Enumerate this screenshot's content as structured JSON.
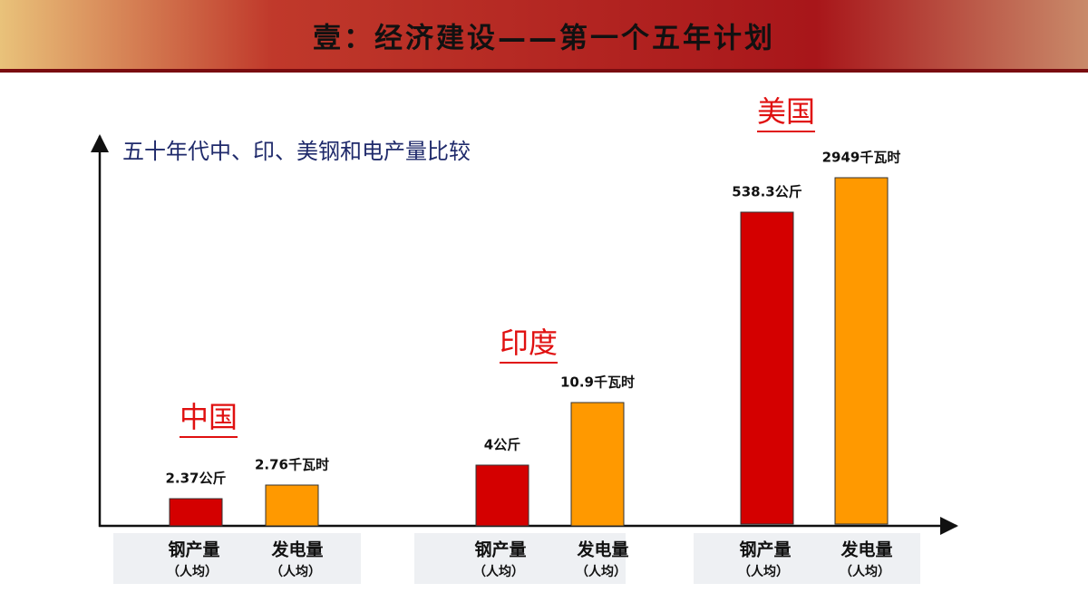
{
  "header": {
    "title": "壹：经济建设——第一个五年计划"
  },
  "chart": {
    "title": "五十年代中、印、美钢和电产量比较",
    "groups": [
      {
        "name": "中国",
        "bars": [
          {
            "label": "钢产量",
            "sublabel": "（人均）",
            "value_label": "2.37公斤"
          },
          {
            "label": "发电量",
            "sublabel": "（人均）",
            "value_label": "2.76千瓦时"
          }
        ]
      },
      {
        "name": "印度",
        "bars": [
          {
            "label": "钢产量",
            "sublabel": "（人均）",
            "value_label": "4公斤"
          },
          {
            "label": "发电量",
            "sublabel": "（人均）",
            "value_label": "10.9千瓦时"
          }
        ]
      },
      {
        "name": "美国",
        "bars": [
          {
            "label": "钢产量",
            "sublabel": "（人均）",
            "value_label": "538.3公斤"
          },
          {
            "label": "发电量",
            "sublabel": "（人均）",
            "value_label": "2949千瓦时"
          }
        ]
      }
    ]
  }
}
